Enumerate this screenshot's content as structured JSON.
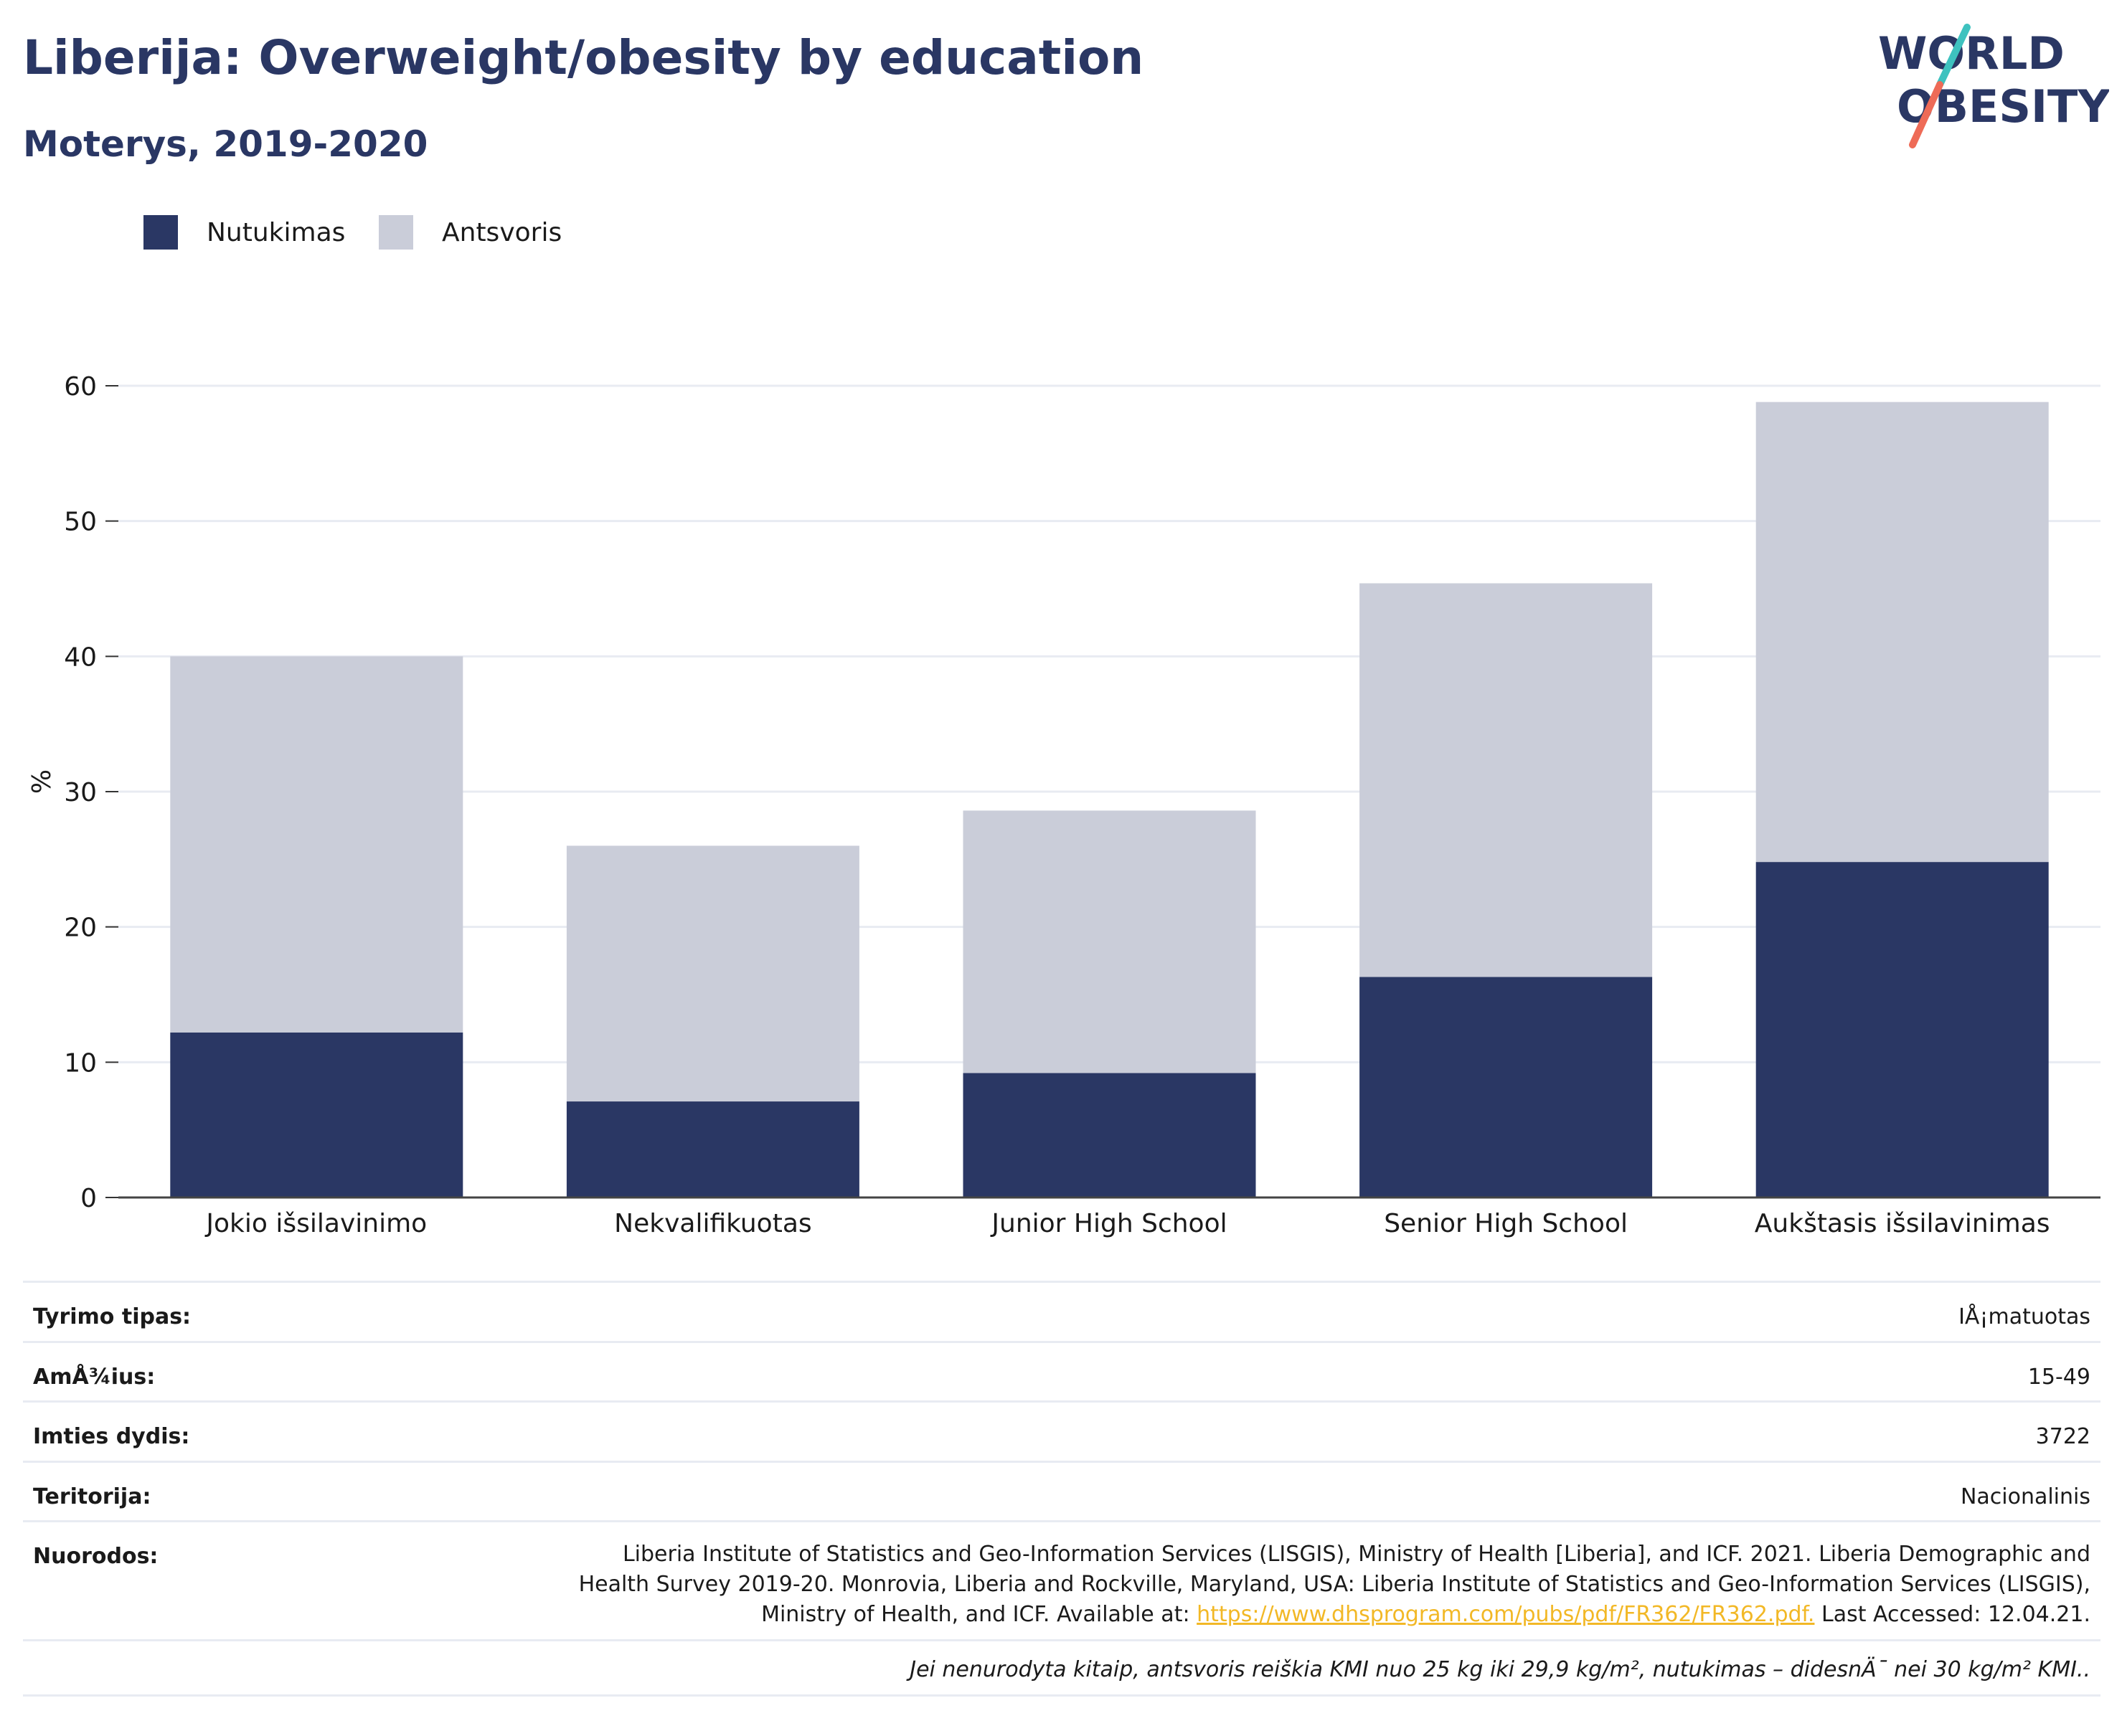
{
  "title": "Liberija: Overweight/obesity by education",
  "subtitle": "Moterys, 2019-2020",
  "logo": {
    "line1": "WORLD",
    "line2": "OBESITY"
  },
  "legend": [
    {
      "label": "Nutukimas",
      "color": "#2a3764"
    },
    {
      "label": "Antsvoris",
      "color": "#cacdd9"
    }
  ],
  "chart_data": {
    "type": "bar",
    "stacked": true,
    "categories": [
      "Jokio išsilavinimo",
      "Nekvalifikuotas",
      "Junior High School",
      "Senior High School",
      "Aukštasis išsilavinimas"
    ],
    "series": [
      {
        "name": "Nutukimas",
        "color": "#2a3764",
        "values": [
          12.2,
          7.1,
          9.2,
          16.3,
          24.8
        ]
      },
      {
        "name": "Antsvoris",
        "color": "#cacdd9",
        "values": [
          27.8,
          18.9,
          19.4,
          29.1,
          34.0
        ]
      }
    ],
    "ylabel": "%",
    "ylim": [
      0,
      60
    ],
    "yticks": [
      0,
      10,
      20,
      30,
      40,
      50,
      60
    ],
    "grid": true
  },
  "info": [
    {
      "key": "Tyrimo tipas:",
      "value": "IÅ¡matuotas"
    },
    {
      "key": "AmÅ¾ius:",
      "value": "15-49"
    },
    {
      "key": "Imties dydis:",
      "value": "3722"
    },
    {
      "key": "Teritorija:",
      "value": "Nacionalinis"
    }
  ],
  "references": {
    "key": "Nuorodos:",
    "text_before": "Liberia Institute of Statistics and Geo-Information Services (LISGIS), Ministry of Health [Liberia], and ICF. 2021. Liberia Demographic and Health Survey 2019-20. Monrovia, Liberia and Rockville, Maryland, USA: Liberia Institute of Statistics and Geo-Information Services (LISGIS), Ministry of Health, and ICF. Available at: ",
    "link": "https://www.dhsprogram.com/pubs/pdf/FR362/FR362.pdf.",
    "text_after": " Last Accessed: 12.04.21."
  },
  "footnote": "Jei nenurodyta kitaip, antsvoris reiškia KMI nuo 25 kg iki 29,9 kg/m², nutukimas – didesnÄ¯ nei 30 kg/m² KMI.."
}
